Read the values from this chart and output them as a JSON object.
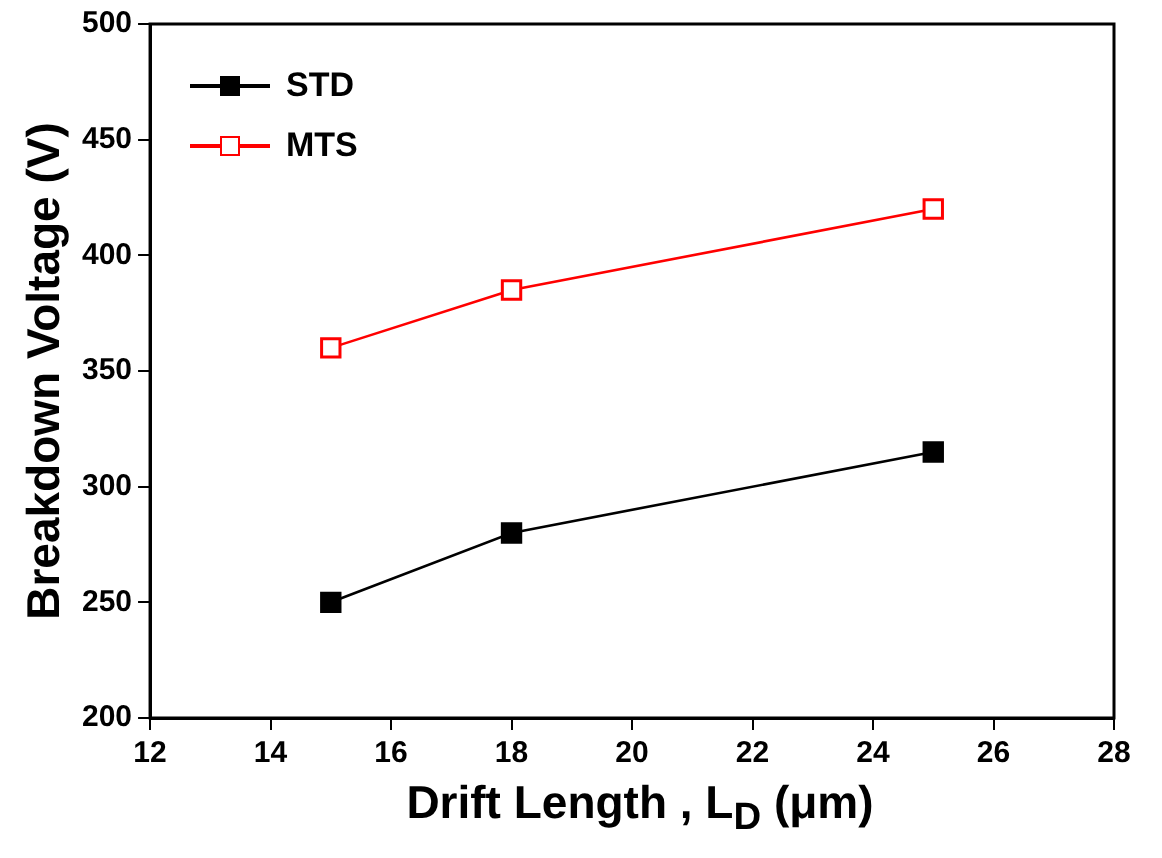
{
  "chart_data": {
    "type": "line",
    "xlabel": "Drift Length , L$_{D}$ (μm)",
    "ylabel": "Breakdown Voltage (V)",
    "x": [
      15,
      18,
      25
    ],
    "series": [
      {
        "name": "STD",
        "color": "#000000",
        "values": [
          250,
          280,
          315
        ]
      },
      {
        "name": "MTS",
        "color": "#ff0000",
        "values": [
          360,
          385,
          420
        ]
      }
    ],
    "xlim": [
      12,
      28
    ],
    "xticks": [
      12,
      14,
      16,
      18,
      20,
      22,
      24,
      26,
      28
    ],
    "ylim": [
      200,
      500
    ],
    "yticks": [
      200,
      250,
      300,
      350,
      400,
      450,
      500
    ],
    "grid": false,
    "legend": "top left",
    "marker": "square",
    "line_style": "solid"
  }
}
